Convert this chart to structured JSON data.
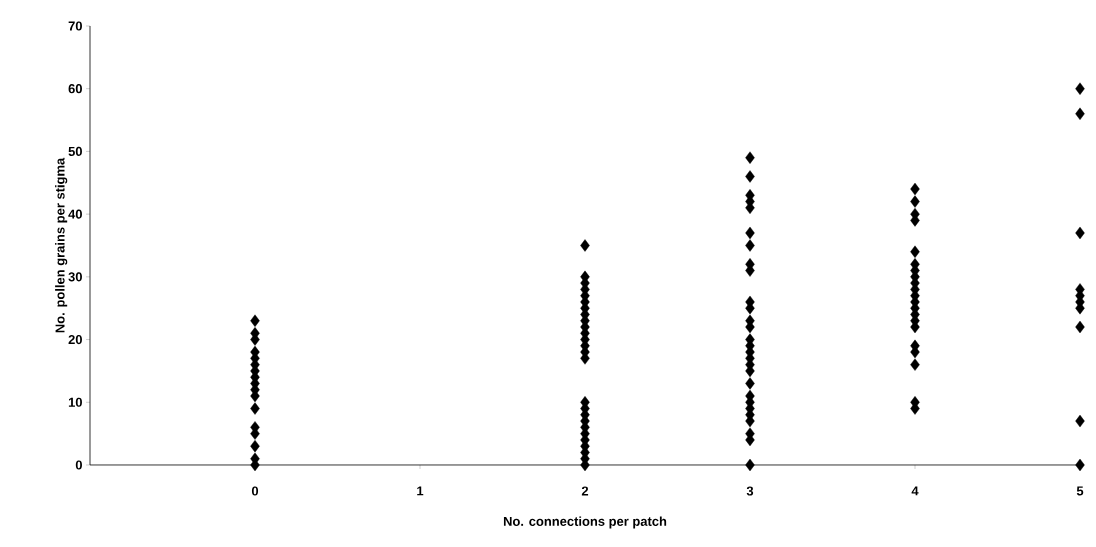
{
  "chart_data": {
    "type": "scatter",
    "xlabel": "No. connections per patch",
    "ylabel": "No. pollen grains per stigma",
    "x": [
      0,
      0,
      0,
      0,
      0,
      0,
      0,
      0,
      0,
      0,
      0,
      0,
      0,
      0,
      0,
      0,
      0,
      2,
      2,
      2,
      2,
      2,
      2,
      2,
      2,
      2,
      2,
      2,
      2,
      2,
      2,
      2,
      2,
      2,
      2,
      2,
      2,
      2,
      2,
      2,
      2,
      2,
      2,
      3,
      3,
      3,
      3,
      3,
      3,
      3,
      3,
      3,
      3,
      3,
      3,
      3,
      3,
      3,
      3,
      3,
      3,
      3,
      3,
      3,
      3,
      3,
      3,
      3,
      3,
      3,
      3,
      4,
      4,
      4,
      4,
      4,
      4,
      4,
      4,
      4,
      4,
      4,
      4,
      4,
      4,
      4,
      4,
      4,
      4,
      4,
      4,
      4,
      5,
      5,
      5,
      5,
      5,
      5,
      5,
      5,
      5,
      5
    ],
    "values": [
      23,
      21,
      20,
      18,
      17,
      16,
      15,
      14,
      13,
      12,
      11,
      9,
      6,
      5,
      3,
      1,
      0,
      35,
      30,
      29,
      28,
      27,
      26,
      25,
      24,
      23,
      22,
      21,
      20,
      19,
      18,
      17,
      10,
      9,
      8,
      7,
      6,
      5,
      4,
      3,
      2,
      1,
      0,
      49,
      46,
      43,
      42,
      41,
      37,
      35,
      32,
      31,
      26,
      25,
      23,
      22,
      20,
      19,
      18,
      17,
      16,
      15,
      13,
      11,
      10,
      9,
      8,
      7,
      5,
      4,
      0,
      44,
      42,
      40,
      39,
      34,
      32,
      31,
      30,
      29,
      28,
      27,
      26,
      25,
      24,
      23,
      22,
      19,
      18,
      16,
      10,
      9,
      60,
      56,
      37,
      28,
      27,
      26,
      25,
      22,
      7,
      0
    ],
    "color": "#000000",
    "marker": "diamond",
    "xlim": [
      -1,
      5
    ],
    "ylim": [
      0,
      70
    ],
    "xticks": [
      0,
      1,
      2,
      3,
      4,
      5
    ],
    "yticks": [
      0,
      10,
      20,
      30,
      40,
      50,
      60,
      70
    ]
  }
}
